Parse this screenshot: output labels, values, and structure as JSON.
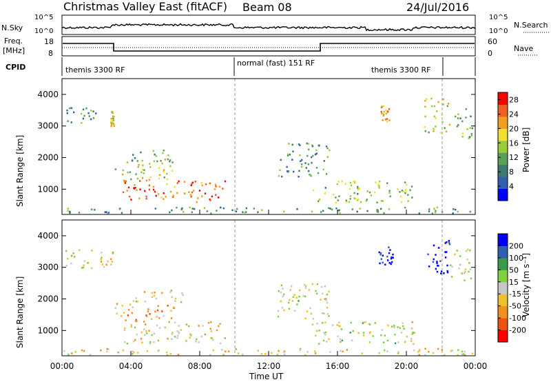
{
  "header": {
    "title": "Christmas Valley East (fitACF)",
    "beam": "Beam 08",
    "date": "24/Jul/2016"
  },
  "nsky_panel": {
    "left_label": "N.Sky",
    "right_label": "N.Search",
    "left_ticks": [
      "10^5",
      "10^0"
    ],
    "right_ticks": [
      "10^5",
      "10^0"
    ]
  },
  "freq_panel": {
    "left_label_line1": "Freq.",
    "left_label_line2": "[MHz]",
    "right_label": "Nave",
    "left_ticks": [
      "18",
      "8"
    ],
    "right_ticks": [
      "60",
      "0"
    ]
  },
  "cpid": {
    "label": "CPID",
    "segments": [
      "themis 3300 RF",
      "normal (fast) 151 RF",
      "themis 3300 RF"
    ]
  },
  "x_axis": {
    "label": "Time UT",
    "ticks": [
      "00:00",
      "04:00",
      "08:00",
      "12:00",
      "16:00",
      "20:00",
      "00:00"
    ]
  },
  "chart_data": [
    {
      "type": "heatmap",
      "name": "power",
      "ylabel": "Slant Range [km]",
      "y_ticks": [
        "1000",
        "2000",
        "3000",
        "4000"
      ],
      "ylim": [
        200,
        4500
      ],
      "xlim_hours": [
        0,
        24
      ],
      "colorbar": {
        "label": "Power [dB]",
        "ticks": [
          "4",
          "8",
          "12",
          "16",
          "20",
          "24",
          "28"
        ],
        "range": [
          0,
          30
        ],
        "colors": [
          "#0000ff",
          "#2e5fb0",
          "#3a7a70",
          "#5aa05a",
          "#9acb3c",
          "#f0e030",
          "#f0a020",
          "#f06020",
          "#ff0000"
        ]
      },
      "blobs": [
        {
          "t": [
            0.2,
            2.2
          ],
          "r": [
            3100,
            3600
          ],
          "level": 0.3
        },
        {
          "t": [
            2.8,
            3.0
          ],
          "r": [
            3000,
            3500
          ],
          "level": 0.6
        },
        {
          "t": [
            3.0,
            6.5
          ],
          "r": [
            1300,
            1900
          ],
          "level": 0.55
        },
        {
          "t": [
            3.5,
            9.5
          ],
          "r": [
            600,
            1300
          ],
          "level": 0.8
        },
        {
          "t": [
            4.0,
            6.5
          ],
          "r": [
            1900,
            2300
          ],
          "level": 0.4
        },
        {
          "t": [
            12.5,
            15.5
          ],
          "r": [
            1400,
            2500
          ],
          "level": 0.35
        },
        {
          "t": [
            14.5,
            20.5
          ],
          "r": [
            600,
            1300
          ],
          "level": 0.5
        },
        {
          "t": [
            18.5,
            19.0
          ],
          "r": [
            3100,
            3700
          ],
          "level": 0.7
        },
        {
          "t": [
            21.0,
            22.5
          ],
          "r": [
            2800,
            3900
          ],
          "level": 0.6
        },
        {
          "t": [
            22.8,
            23.8
          ],
          "r": [
            2600,
            3600
          ],
          "level": 0.45
        },
        {
          "t": [
            0.0,
            24.0
          ],
          "r": [
            250,
            450
          ],
          "level": 0.35
        }
      ]
    },
    {
      "type": "heatmap",
      "name": "velocity",
      "ylabel": "Slant Range [km]",
      "y_ticks": [
        "1000",
        "2000",
        "3000",
        "4000"
      ],
      "ylim": [
        200,
        4500
      ],
      "xlim_hours": [
        0,
        24
      ],
      "colorbar": {
        "label": "Velocity [m s⁻¹]",
        "ticks": [
          "200",
          "100",
          "50",
          "15",
          "-15",
          "-50",
          "-100",
          "-200"
        ],
        "range": [
          -250,
          250
        ],
        "colors": [
          "#ff0000",
          "#f05010",
          "#f09020",
          "#f0c030",
          "#c8c8c8",
          "#80d040",
          "#3a9a50",
          "#2e5fb0",
          "#0000ff"
        ]
      },
      "blobs": [
        {
          "t": [
            0.2,
            3.0
          ],
          "r": [
            3000,
            3600
          ],
          "level": 0.45
        },
        {
          "t": [
            3.0,
            6.5
          ],
          "r": [
            1300,
            1900
          ],
          "level": 0.3
        },
        {
          "t": [
            3.5,
            9.5
          ],
          "r": [
            600,
            1300
          ],
          "level": 0.45
        },
        {
          "t": [
            4.0,
            7.0
          ],
          "r": [
            1900,
            2300
          ],
          "level": 0.45
        },
        {
          "t": [
            12.5,
            15.5
          ],
          "r": [
            1400,
            2500
          ],
          "level": 0.5
        },
        {
          "t": [
            14.5,
            20.5
          ],
          "r": [
            600,
            1300
          ],
          "level": 0.5
        },
        {
          "t": [
            18.3,
            19.2
          ],
          "r": [
            3100,
            3700
          ],
          "level": 0.95
        },
        {
          "t": [
            21.0,
            22.5
          ],
          "r": [
            2800,
            3900
          ],
          "level": 0.95
        },
        {
          "t": [
            22.5,
            23.8
          ],
          "r": [
            2600,
            3600
          ],
          "level": 0.5
        },
        {
          "t": [
            0.0,
            24.0
          ],
          "r": [
            250,
            450
          ],
          "level": 0.4
        }
      ]
    }
  ]
}
